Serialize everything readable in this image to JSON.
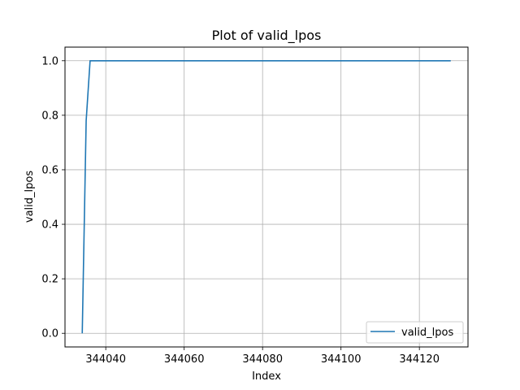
{
  "chart_data": {
    "type": "line",
    "title": "Plot of valid_lpos",
    "xlabel": "Index",
    "ylabel": "valid_lpos",
    "xlim": [
      344029.6,
      344132.4
    ],
    "ylim": [
      -0.05,
      1.05
    ],
    "xticks": [
      344040,
      344060,
      344080,
      344100,
      344120
    ],
    "xtick_labels": [
      "344040",
      "344060",
      "344080",
      "344100",
      "344120"
    ],
    "yticks": [
      0.0,
      0.2,
      0.4,
      0.6,
      0.8,
      1.0
    ],
    "ytick_labels": [
      "0.0",
      "0.2",
      "0.4",
      "0.6",
      "0.8",
      "1.0"
    ],
    "grid": true,
    "legend_position": "lower right",
    "series": [
      {
        "name": "valid_lpos",
        "color": "#1f77b4",
        "x": [
          344034,
          344035,
          344036,
          344128
        ],
        "y": [
          0.0,
          0.78,
          1.0,
          1.0
        ]
      }
    ]
  }
}
